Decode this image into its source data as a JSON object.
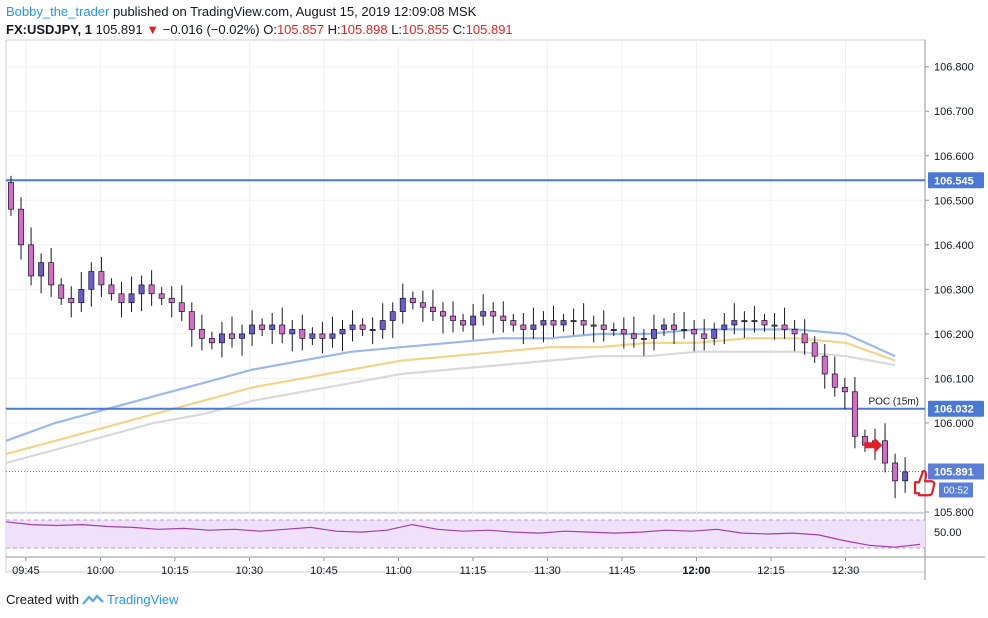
{
  "header": {
    "author": "Bobby_the_trader",
    "published": "published on TradingView.com, August 15, 2019 12:09:08 MSK",
    "symbol": "FX:USDJPY, 1",
    "last": "105.891",
    "change": "−0.016 (−0.02%)",
    "o_label": "O:",
    "o_value": "105.857",
    "h_label": "H:",
    "h_value": "105.898",
    "l_label": "L:",
    "l_value": "105.855",
    "c_label": "C:",
    "c_value": "105.891"
  },
  "footer": {
    "created_with": "Created with",
    "brand": "TradingView"
  },
  "colors": {
    "bull": "#6a5bd0",
    "bear": "#d56ac9",
    "wick": "#131722",
    "hline": "#4a78d6",
    "ema_fast": "#9ab8ec",
    "ema_mid": "#f2d488",
    "ema_slow": "#d9d9d9",
    "rsi": "#a23db3",
    "rsi_band": "#efe1fb",
    "marker": "#e21f26"
  },
  "chart_data": {
    "type": "candlestick",
    "symbol": "FX:USDJPY",
    "timeframe": "1",
    "y_range": [
      105.8,
      106.86
    ],
    "y_ticks": [
      "106.800",
      "106.700",
      "106.600",
      "106.500",
      "106.400",
      "106.300",
      "106.200",
      "106.100",
      "106.000",
      "105.800"
    ],
    "x_ticks": [
      "09:45",
      "10:00",
      "10:15",
      "10:30",
      "10:45",
      "11:00",
      "11:15",
      "11:30",
      "11:45",
      "12:00",
      "12:15",
      "12:30"
    ],
    "x_start_minute": 581,
    "x_end_minute": 766,
    "horizontal_lines": [
      {
        "price": 106.545,
        "label": "106.545"
      },
      {
        "price": 106.032,
        "label": "106.032",
        "annotation": "POC (15m)"
      }
    ],
    "last_price": {
      "price": 105.891,
      "label": "105.891",
      "countdown": "00:52"
    },
    "close_series": [
      106.48,
      106.4,
      106.33,
      106.36,
      106.31,
      106.28,
      106.27,
      106.3,
      106.34,
      106.31,
      106.29,
      106.27,
      106.29,
      106.31,
      106.29,
      106.28,
      106.27,
      106.25,
      106.21,
      106.19,
      106.18,
      106.2,
      106.19,
      106.2,
      106.22,
      106.21,
      106.22,
      106.2,
      106.21,
      106.19,
      106.2,
      106.19,
      106.2,
      106.21,
      106.22,
      106.21,
      106.21,
      106.23,
      106.25,
      106.28,
      106.27,
      106.26,
      106.25,
      106.24,
      106.23,
      106.22,
      106.24,
      106.25,
      106.24,
      106.23,
      106.22,
      106.21,
      106.22,
      106.23,
      106.22,
      106.23,
      106.23,
      106.22,
      106.22,
      106.21,
      106.21,
      106.2,
      106.19,
      106.19,
      106.21,
      106.22,
      106.21,
      106.21,
      106.2,
      106.19,
      106.21,
      106.22,
      106.23,
      106.23,
      106.23,
      106.22,
      106.22,
      106.21,
      106.2,
      106.18,
      106.15,
      106.11,
      106.08,
      106.07,
      105.97,
      105.95,
      105.96,
      105.91,
      105.87,
      105.89
    ],
    "ema_fast": [
      105.96,
      106.0,
      106.03,
      106.06,
      106.09,
      106.12,
      106.14,
      106.16,
      106.17,
      106.18,
      106.19,
      106.19,
      106.2,
      106.2,
      106.21,
      106.21,
      106.21,
      106.2,
      106.15
    ],
    "ema_mid": [
      105.93,
      105.96,
      105.99,
      106.02,
      106.05,
      106.08,
      106.1,
      106.12,
      106.14,
      106.15,
      106.16,
      106.17,
      106.17,
      106.18,
      106.18,
      106.19,
      106.19,
      106.18,
      106.14
    ],
    "ema_slow": [
      105.91,
      105.94,
      105.97,
      106.0,
      106.02,
      106.05,
      106.07,
      106.09,
      106.11,
      106.12,
      106.13,
      106.14,
      106.15,
      106.15,
      106.16,
      106.16,
      106.16,
      106.15,
      106.13
    ],
    "rsi_level": "50.00",
    "rsi_values": [
      58,
      55,
      54,
      55,
      53,
      52,
      50,
      51,
      49,
      50,
      48,
      50,
      52,
      48,
      47,
      49,
      55,
      50,
      48,
      49,
      47,
      46,
      48,
      47,
      46,
      47,
      49,
      48,
      50,
      46,
      45,
      46,
      44,
      38,
      33,
      31,
      34
    ],
    "annotations": [
      "red-arrow",
      "thumbs-up"
    ]
  }
}
